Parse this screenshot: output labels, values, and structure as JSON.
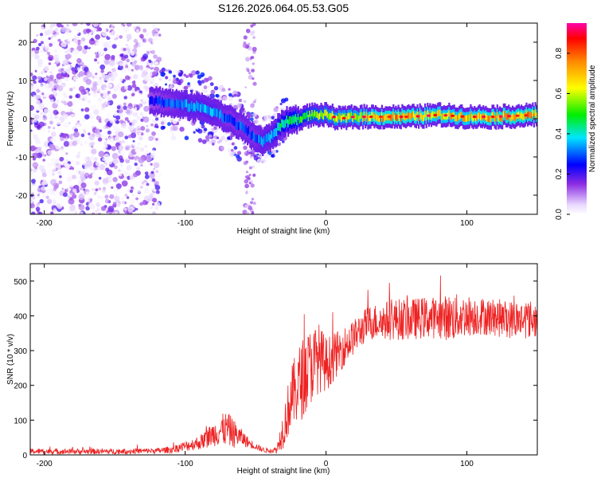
{
  "figure_title": "S126.2026.064.05.53.G05",
  "chart_data": [
    {
      "type": "heatmap",
      "title": "S126.2026.064.05.53.G05",
      "xlabel": "Height of straight line (km)",
      "ylabel": "Frequency (Hz)",
      "xlim": [
        -210,
        150
      ],
      "ylim": [
        -25,
        25
      ],
      "xticks": [
        -200,
        -100,
        0,
        100
      ],
      "yticks": [
        -20,
        -10,
        0,
        10,
        20
      ],
      "colorbar": {
        "label": "Normalized spectral amplitude",
        "range": [
          0,
          0.95
        ],
        "ticks": [
          0.0,
          0.2,
          0.4,
          0.6,
          0.8
        ]
      },
      "ridge": {
        "x": [
          -125,
          -110,
          -100,
          -90,
          -80,
          -70,
          -60,
          -50,
          -45,
          -40,
          -35,
          -30,
          -20,
          -10,
          0,
          10,
          20,
          40,
          60,
          80,
          100,
          120,
          150
        ],
        "freq": [
          5,
          4,
          3.5,
          3,
          2,
          0,
          -2,
          -5,
          -6,
          -5,
          -3,
          -1,
          0,
          1,
          1,
          0,
          0.5,
          0.5,
          0.5,
          1,
          0.5,
          0.5,
          1
        ],
        "amplitude": [
          0.25,
          0.3,
          0.35,
          0.35,
          0.35,
          0.3,
          0.3,
          0.3,
          0.35,
          0.35,
          0.4,
          0.45,
          0.5,
          0.55,
          0.6,
          0.65,
          0.65,
          0.75,
          0.75,
          0.7,
          0.7,
          0.75,
          0.75
        ]
      }
    },
    {
      "type": "line",
      "xlabel": "Height of straight line (km)",
      "ylabel": "SNR (10 * v/v)",
      "xlim": [
        -210,
        150
      ],
      "ylim": [
        0,
        550
      ],
      "xticks": [
        -200,
        -100,
        0,
        100
      ],
      "yticks": [
        0,
        100,
        200,
        300,
        400,
        500
      ],
      "series": [
        {
          "name": "SNR",
          "color": "#ee2222",
          "envelope_x": [
            -210,
            -150,
            -120,
            -110,
            -100,
            -90,
            -80,
            -75,
            -70,
            -65,
            -60,
            -55,
            -50,
            -45,
            -40,
            -35,
            -30,
            -25,
            -20,
            -15,
            -10,
            -5,
            0,
            5,
            10,
            15,
            20,
            25,
            30,
            40,
            50,
            60,
            70,
            80,
            90,
            100,
            110,
            120,
            130,
            140,
            150
          ],
          "envelope_mean": [
            10,
            10,
            12,
            15,
            25,
            35,
            60,
            70,
            75,
            60,
            50,
            35,
            25,
            15,
            12,
            15,
            80,
            160,
            200,
            230,
            260,
            280,
            260,
            280,
            300,
            320,
            340,
            360,
            380,
            385,
            390,
            390,
            395,
            395,
            395,
            400,
            400,
            395,
            390,
            390,
            390
          ],
          "envelope_amplitude": [
            8,
            8,
            8,
            10,
            15,
            20,
            35,
            45,
            50,
            40,
            25,
            15,
            10,
            8,
            6,
            10,
            60,
            90,
            110,
            120,
            110,
            100,
            80,
            70,
            60,
            55,
            50,
            50,
            50,
            55,
            60,
            60,
            60,
            60,
            70,
            60,
            55,
            55,
            55,
            55,
            55
          ]
        }
      ]
    }
  ]
}
